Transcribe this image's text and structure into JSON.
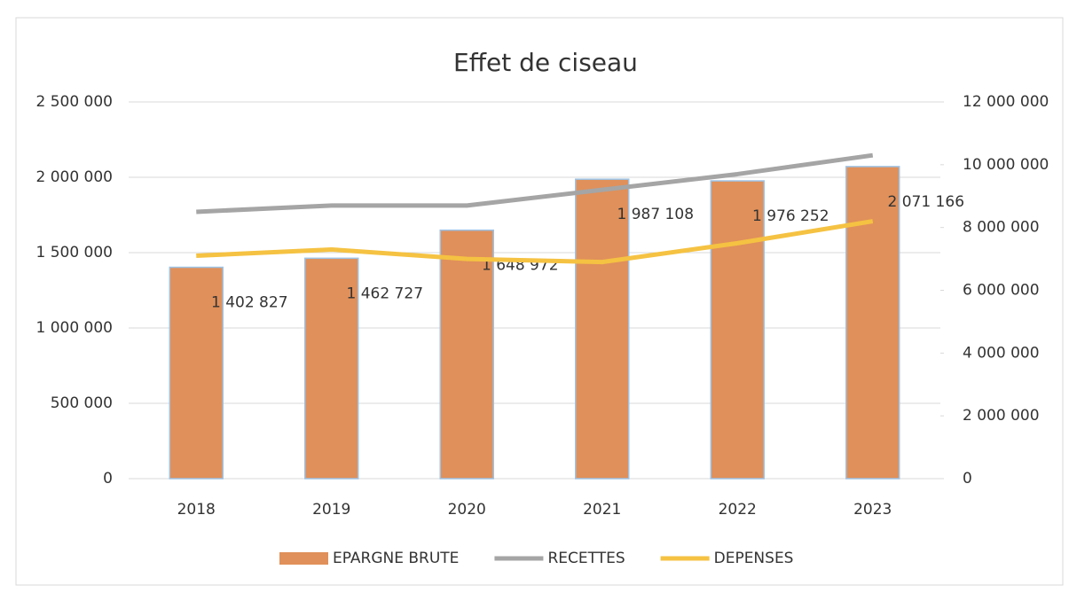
{
  "chart_data": {
    "type": "bar-line",
    "title": "Effet de ciseau",
    "categories": [
      "2018",
      "2019",
      "2020",
      "2021",
      "2022",
      "2023"
    ],
    "series": [
      {
        "name": "EPARGNE BRUTE",
        "type": "bar",
        "color": "#e0905a",
        "axis": "y",
        "values": [
          1402827,
          1462727,
          1648972,
          1987108,
          1976252,
          2071166
        ],
        "value_labels": [
          "1 402 827",
          "1 462 727",
          "1 648 972",
          "1 987 108",
          "1 976 252",
          "2 071 166"
        ]
      },
      {
        "name": "RECETTES",
        "type": "line",
        "color": "#a5a5a5",
        "axis": "y2",
        "values": [
          8500000,
          8700000,
          8700000,
          9200000,
          9700000,
          10300000
        ]
      },
      {
        "name": "DEPENSES",
        "type": "line",
        "color": "#f5c242",
        "axis": "y2",
        "values": [
          7100000,
          7300000,
          7000000,
          6900000,
          7500000,
          8200000
        ]
      }
    ],
    "ylim": [
      0,
      2500000
    ],
    "yticks": [
      0,
      {
        "value": 500000,
        "label": "500 000"
      },
      {
        "value": 1000000,
        "label": "1 000 000"
      },
      {
        "value": 1500000,
        "label": "1 500 000"
      },
      {
        "value": 2000000,
        "label": "2 000 000"
      },
      {
        "value": 2500000,
        "label": "2 500 000"
      }
    ],
    "y2lim": [
      0,
      12000000
    ],
    "y2ticks": [
      0,
      {
        "value": 2000000,
        "label": "2 000 000"
      },
      {
        "value": 4000000,
        "label": "4 000 000"
      },
      {
        "value": 6000000,
        "label": "6 000 000"
      },
      {
        "value": 8000000,
        "label": "8 000 000"
      },
      {
        "value": 10000000,
        "label": "10 000 000"
      },
      {
        "value": 12000000,
        "label": "12 000 000"
      }
    ],
    "grid": true,
    "legend": "bottom"
  }
}
